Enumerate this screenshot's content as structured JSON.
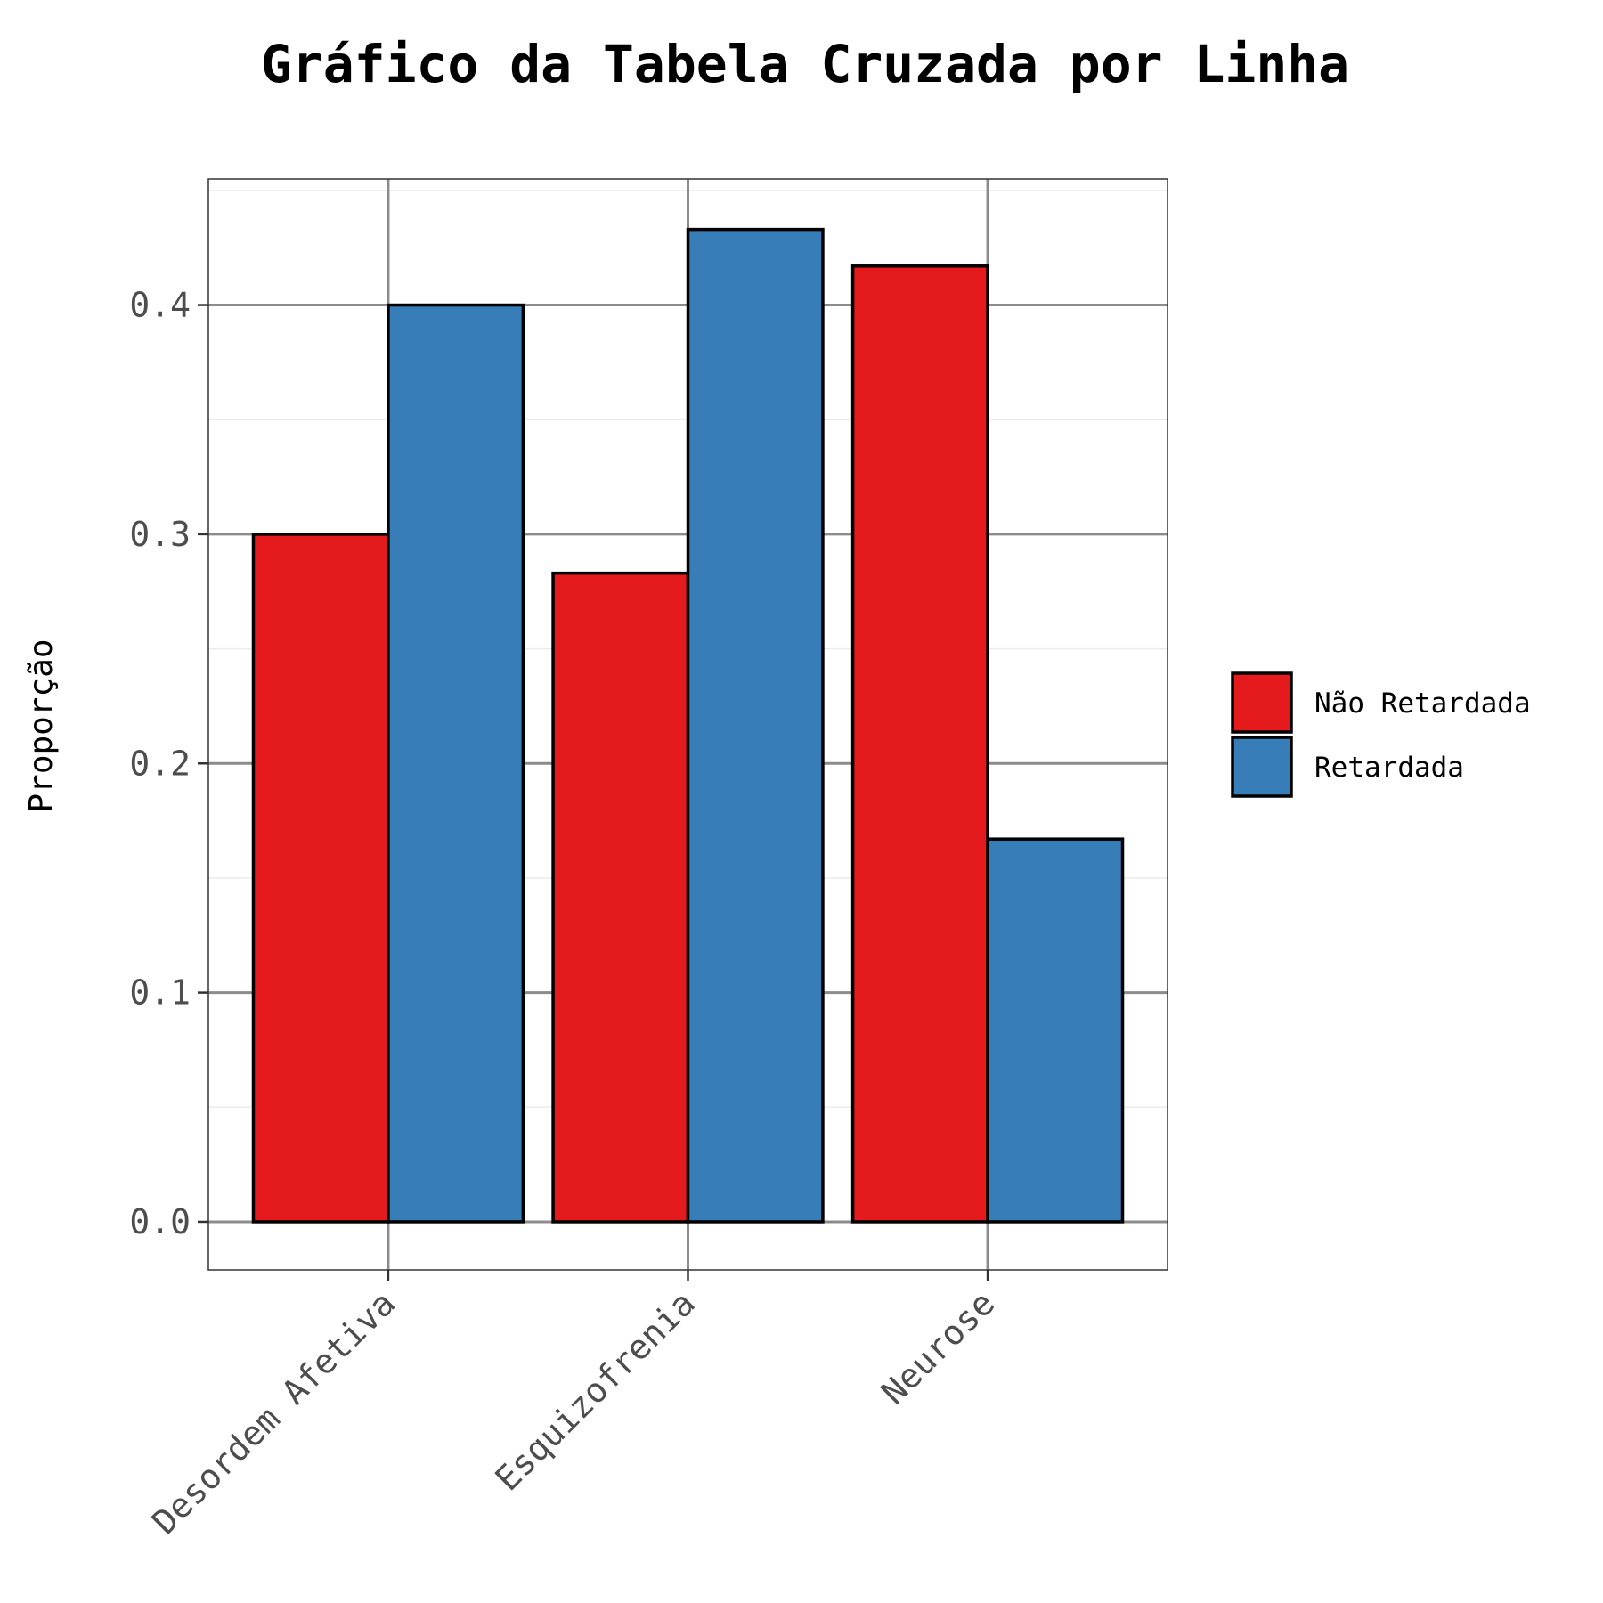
{
  "chart_data": {
    "type": "bar",
    "title": "Gráfico da Tabela Cruzada por Linha",
    "xlabel": "",
    "ylabel": "Proporção",
    "categories": [
      "Desordem Afetiva",
      "Esquizofrenia",
      "Neurose"
    ],
    "series": [
      {
        "name": "Não Retardada",
        "values": [
          0.3,
          0.283,
          0.417
        ],
        "color": "#E41A1C"
      },
      {
        "name": "Retardada",
        "values": [
          0.4,
          0.433,
          0.167
        ],
        "color": "#377EB8"
      }
    ],
    "ylim": [
      -0.021,
      0.455
    ],
    "yticks": [
      "0.0",
      "0.1",
      "0.2",
      "0.3",
      "0.4"
    ],
    "grid": true,
    "legend_position": "right"
  }
}
